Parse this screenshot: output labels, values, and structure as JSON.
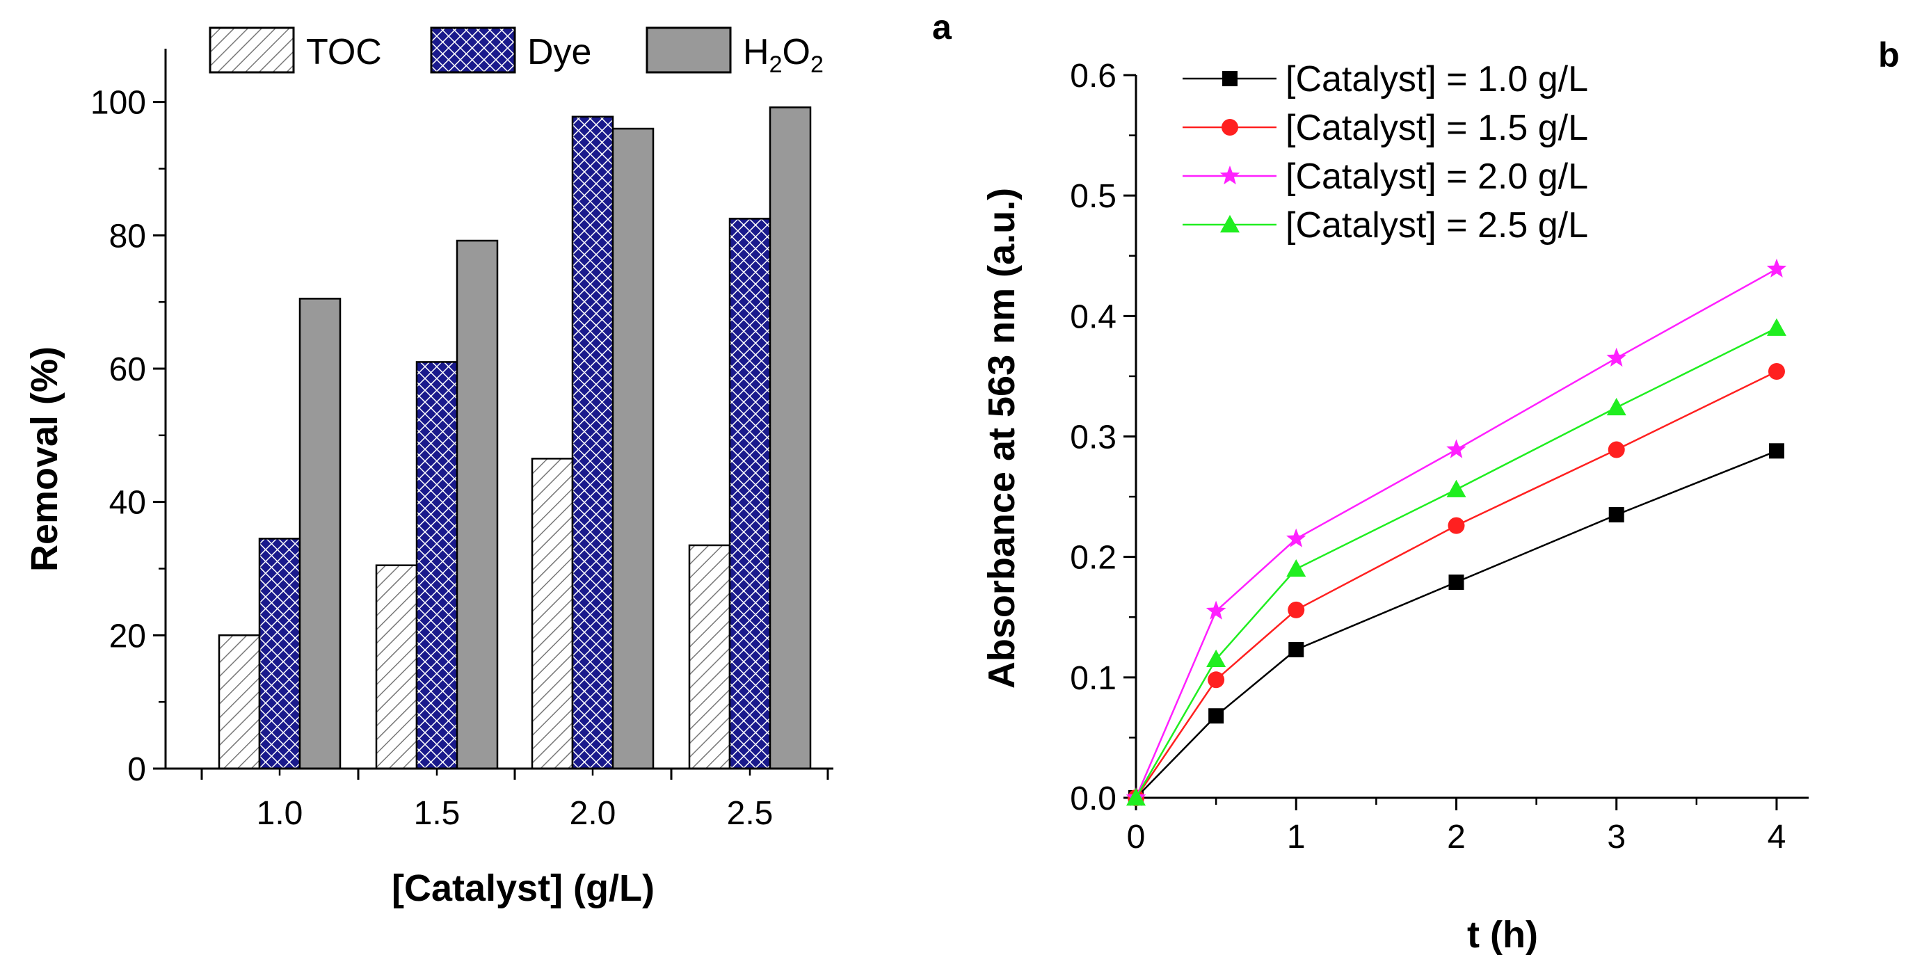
{
  "chart_data": [
    {
      "panel": "a",
      "type": "bar",
      "categories": [
        "1.0",
        "1.5",
        "2.0",
        "2.5"
      ],
      "series": [
        {
          "name": "TOC",
          "values": [
            20,
            30.5,
            46.5,
            33.5
          ],
          "color": "#ffffff",
          "pattern": "diagonal-hatch"
        },
        {
          "name": "Dye",
          "values": [
            34.5,
            61,
            97.8,
            82.5
          ],
          "color": "#1a1a8c",
          "pattern": "crosshatch"
        },
        {
          "name": "H2O2",
          "values": [
            70.5,
            79.2,
            96,
            99.2
          ],
          "color": "#999999",
          "pattern": "solid"
        }
      ],
      "legend_labels": {
        "toc": "TOC",
        "dye": "Dye",
        "h2o2_main_1": "H",
        "h2o2_sub_1": "2",
        "h2o2_main_2": "O",
        "h2o2_sub_2": "2"
      },
      "xlabel": "[Catalyst] (g/L)",
      "ylabel": "Removal (%)",
      "ylim": [
        0,
        108
      ],
      "yticks": [
        0,
        20,
        40,
        60,
        80,
        100
      ],
      "legend_position": "top"
    },
    {
      "panel": "b",
      "type": "line",
      "x": [
        0,
        0.5,
        1,
        2,
        3,
        4
      ],
      "series": [
        {
          "name": "[Catalyst] = 1.0 g/L",
          "values": [
            0,
            0.068,
            0.123,
            0.179,
            0.235,
            0.288
          ],
          "color": "#000000",
          "marker": "square"
        },
        {
          "name": "[Catalyst] = 1.5 g/L",
          "values": [
            0,
            0.098,
            0.156,
            0.226,
            0.289,
            0.354
          ],
          "color": "#ff2020",
          "marker": "circle"
        },
        {
          "name": "[Catalyst] = 2.0 g/L",
          "values": [
            0,
            0.155,
            0.215,
            0.289,
            0.365,
            0.439
          ],
          "color": "#ff20ff",
          "marker": "star"
        },
        {
          "name": "[Catalyst] = 2.5 g/L",
          "values": [
            0,
            0.115,
            0.19,
            0.256,
            0.324,
            0.39
          ],
          "color": "#20ee20",
          "marker": "triangle"
        }
      ],
      "xlabel": "t (h)",
      "ylabel": "Absorbance at 563 nm (a.u.)",
      "xlim": [
        0,
        4.2
      ],
      "ylim": [
        0,
        0.6
      ],
      "xticks": [
        "0",
        "1",
        "2",
        "3",
        "4"
      ],
      "yticks": [
        "0.0",
        "0.1",
        "0.2",
        "0.3",
        "0.4",
        "0.5",
        "0.6"
      ],
      "legend_position": "top-left"
    }
  ],
  "panel_labels": {
    "a": "a",
    "b": "b"
  }
}
